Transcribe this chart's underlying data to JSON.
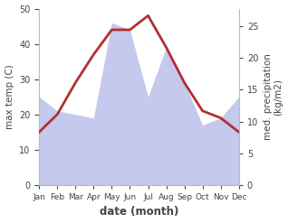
{
  "months": [
    "Jan",
    "Feb",
    "Mar",
    "Apr",
    "May",
    "Jun",
    "Jul",
    "Aug",
    "Sep",
    "Oct",
    "Nov",
    "Dec"
  ],
  "temp_max": [
    15,
    20,
    29,
    37,
    44,
    44,
    48,
    39,
    29,
    21,
    19,
    15
  ],
  "precipitation": [
    25,
    21,
    20,
    19,
    46,
    44,
    25,
    39,
    29,
    17,
    19,
    25
  ],
  "temp_ylim": [
    0,
    50
  ],
  "precip_ylim": [
    0,
    27.8
  ],
  "temp_color": "#b03030",
  "precip_color": "#b0b8e8",
  "precip_fill_alpha": 0.75,
  "temp_linewidth": 2.0,
  "ylabel_left": "max temp (C)",
  "ylabel_right": "med. precipitation\n(kg/m2)",
  "xlabel": "date (month)",
  "bg_color": "#ffffff",
  "tick_color": "#444444",
  "label_fontsize": 7.5,
  "xlabel_fontsize": 8.5,
  "right_ticks": [
    0,
    5,
    10,
    15,
    20,
    25
  ],
  "left_ticks": [
    0,
    10,
    20,
    30,
    40,
    50
  ]
}
